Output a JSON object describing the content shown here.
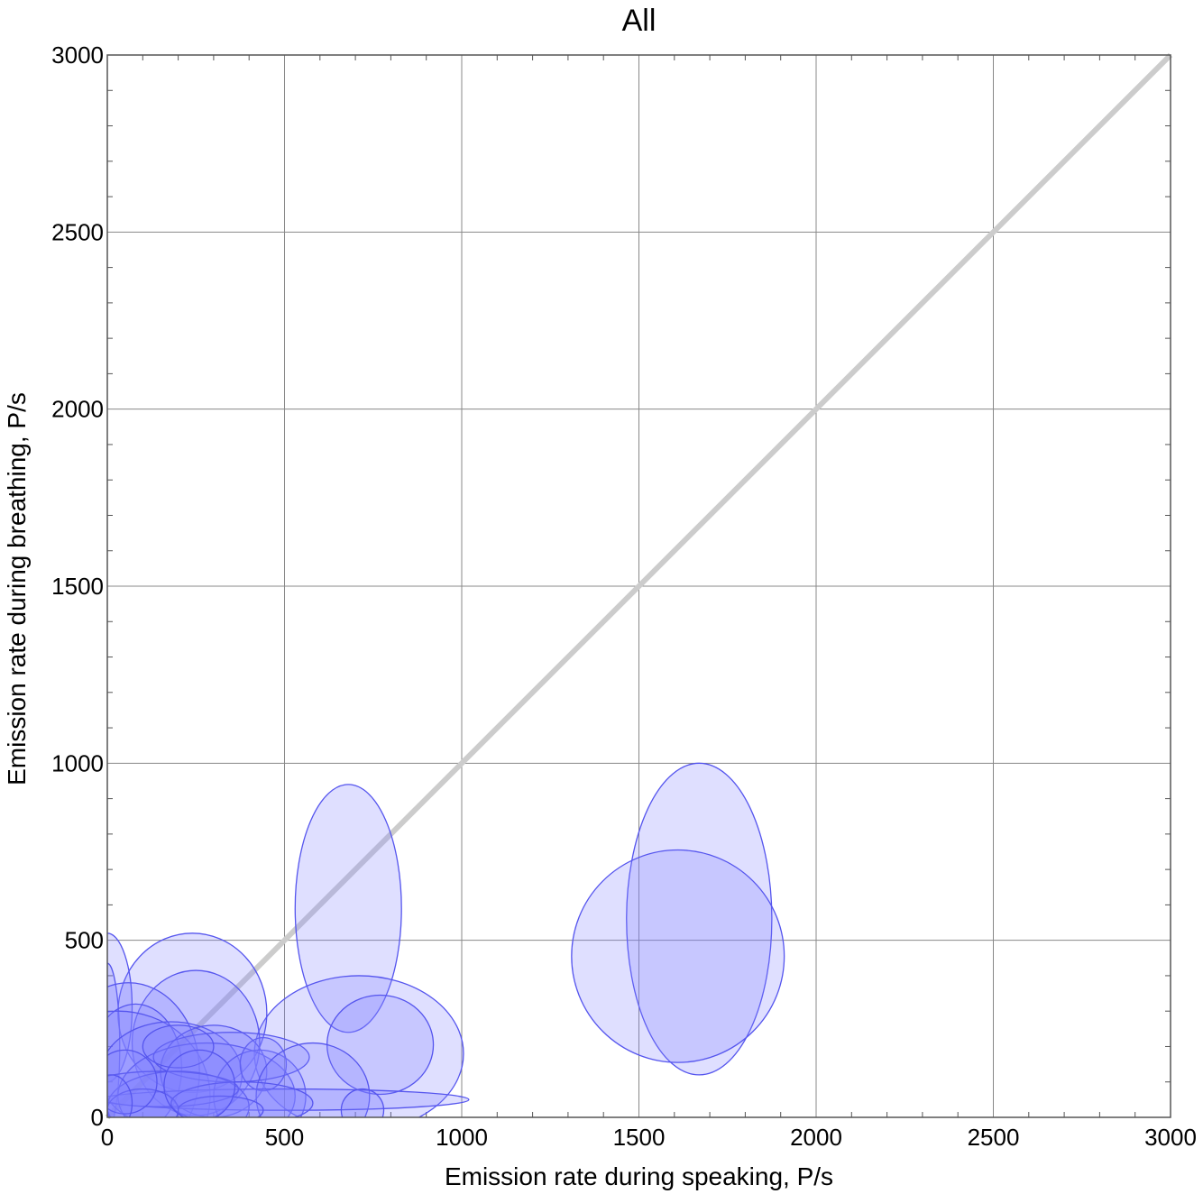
{
  "chart_data": {
    "type": "scatter",
    "title": "All",
    "xlabel": "Emission rate during speaking,  P/s",
    "ylabel": "Emission rate during breathing,  P/s",
    "xlim": [
      0,
      3000
    ],
    "ylim": [
      0,
      3000
    ],
    "xticks": [
      "0",
      "500",
      "1000",
      "1500",
      "2000",
      "2500",
      "3000"
    ],
    "yticks": [
      "0",
      "500",
      "1000",
      "1500",
      "2000",
      "2500",
      "3000"
    ],
    "grid": true,
    "reference_line": {
      "from": [
        0,
        0
      ],
      "to": [
        3000,
        3000
      ],
      "color": "#cccccc"
    },
    "marker_shape": "ellipse",
    "colors": {
      "fill": "#8080ff",
      "stroke": "#5555ee",
      "grid": "#888888"
    },
    "points": [
      {
        "x": 680,
        "y": 590,
        "rx": 150,
        "ry": 350
      },
      {
        "x": 1670,
        "y": 560,
        "rx": 205,
        "ry": 440
      },
      {
        "x": 1610,
        "y": 455,
        "rx": 300,
        "ry": 300
      },
      {
        "x": 710,
        "y": 180,
        "rx": 295,
        "ry": 220
      },
      {
        "x": 770,
        "y": 205,
        "rx": 150,
        "ry": 140
      },
      {
        "x": 240,
        "y": 295,
        "rx": 210,
        "ry": 225
      },
      {
        "x": 250,
        "y": 210,
        "rx": 180,
        "ry": 205
      },
      {
        "x": 0,
        "y": 310,
        "rx": 70,
        "ry": 210
      },
      {
        "x": 0,
        "y": 200,
        "rx": 35,
        "ry": 235
      },
      {
        "x": 60,
        "y": 130,
        "rx": 200,
        "ry": 250
      },
      {
        "x": 80,
        "y": 140,
        "rx": 130,
        "ry": 180
      },
      {
        "x": 30,
        "y": 60,
        "rx": 260,
        "ry": 240
      },
      {
        "x": 180,
        "y": 120,
        "rx": 200,
        "ry": 150
      },
      {
        "x": 300,
        "y": 130,
        "rx": 150,
        "ry": 130
      },
      {
        "x": 280,
        "y": 60,
        "rx": 250,
        "ry": 150
      },
      {
        "x": 430,
        "y": 60,
        "rx": 130,
        "ry": 130
      },
      {
        "x": 440,
        "y": 150,
        "rx": 65,
        "ry": 75
      },
      {
        "x": 350,
        "y": 170,
        "rx": 220,
        "ry": 70
      },
      {
        "x": 580,
        "y": 60,
        "rx": 160,
        "ry": 150
      },
      {
        "x": 500,
        "y": 50,
        "rx": 520,
        "ry": 30
      },
      {
        "x": 720,
        "y": 20,
        "rx": 60,
        "ry": 60
      },
      {
        "x": 200,
        "y": 30,
        "rx": 200,
        "ry": 100
      },
      {
        "x": 150,
        "y": 80,
        "rx": 220,
        "ry": 50
      },
      {
        "x": 100,
        "y": 20,
        "rx": 100,
        "ry": 60
      },
      {
        "x": 380,
        "y": 40,
        "rx": 200,
        "ry": 60
      },
      {
        "x": 50,
        "y": 100,
        "rx": 90,
        "ry": 90
      },
      {
        "x": 200,
        "y": 200,
        "rx": 100,
        "ry": 60
      },
      {
        "x": 320,
        "y": 20,
        "rx": 120,
        "ry": 40
      },
      {
        "x": 10,
        "y": 40,
        "rx": 60,
        "ry": 80
      },
      {
        "x": 260,
        "y": 90,
        "rx": 100,
        "ry": 100
      }
    ]
  }
}
